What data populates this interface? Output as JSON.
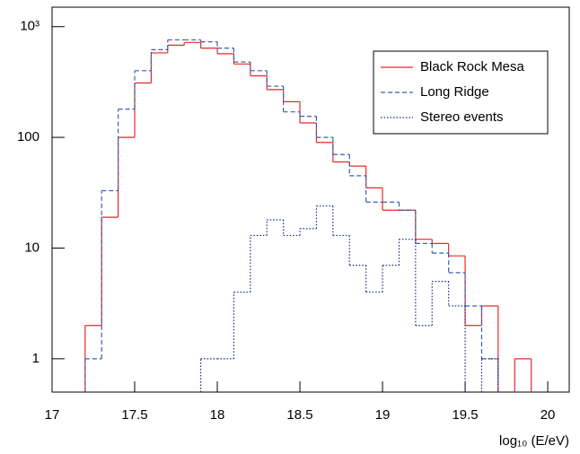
{
  "chart_data": {
    "type": "histogram",
    "x_label": "log₁₀ (E/eV)",
    "bins": [
      17.2,
      17.3,
      17.4,
      17.5,
      17.6,
      17.7,
      17.8,
      17.9,
      18.0,
      18.1,
      18.2,
      18.3,
      18.4,
      18.5,
      18.6,
      18.7,
      18.8,
      18.9,
      19.0,
      19.1,
      19.2,
      19.3,
      19.4,
      19.5,
      19.6,
      19.7,
      19.8,
      19.9
    ],
    "series": [
      {
        "name": "Black Rock Mesa",
        "color": "#e8282a",
        "dash": "solid",
        "values": [
          2,
          19,
          100,
          310,
          580,
          680,
          720,
          640,
          570,
          460,
          360,
          270,
          210,
          135,
          90,
          60,
          55,
          35,
          22,
          22,
          12,
          11,
          8.5,
          2,
          3,
          null,
          1
        ]
      },
      {
        "name": "Long Ridge",
        "color": "#3a5fb0",
        "dash": "dashed",
        "values": [
          1,
          33,
          180,
          400,
          620,
          760,
          760,
          730,
          640,
          480,
          400,
          290,
          170,
          155,
          100,
          70,
          45,
          26,
          26,
          22,
          11,
          9,
          6,
          3,
          1,
          null,
          null
        ]
      },
      {
        "name": "Stereo events",
        "color": "#1a2a80",
        "dash": "dotted",
        "values": [
          null,
          null,
          null,
          null,
          null,
          null,
          null,
          1,
          1,
          4,
          13,
          18,
          13,
          15,
          24,
          13,
          7,
          4,
          7,
          12,
          2,
          5,
          3,
          null,
          1,
          null,
          null
        ]
      }
    ],
    "xlim": [
      17,
      20.13
    ],
    "xticks": [
      17,
      17.5,
      18,
      18.5,
      19,
      19.5,
      20
    ],
    "ylim": [
      0.5,
      1500
    ],
    "log_y": true,
    "yticks": [
      1,
      10,
      100,
      {
        "value": 1000,
        "label": "10³"
      }
    ],
    "legend": "upper right"
  }
}
